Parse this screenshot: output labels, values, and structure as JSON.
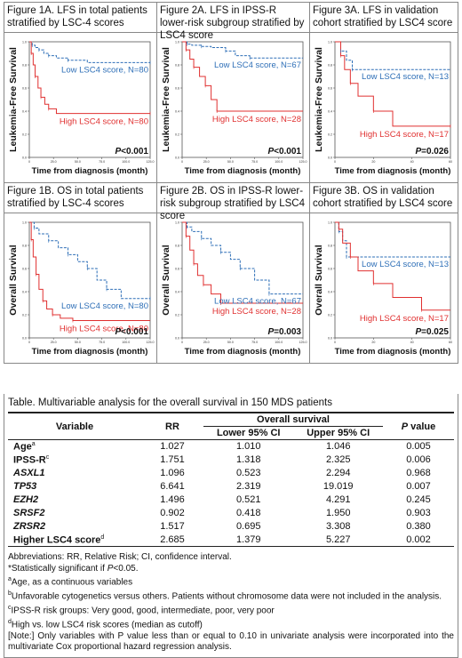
{
  "figures": [
    {
      "id": "1A",
      "caption": "Figure 1A. LFS in total patients stratified by LSC-4 scores",
      "ylabel": "Leukemia-Free Survival",
      "xlabel": "Time from diagnosis (month)",
      "low_label": "Low LSC4 score, N=80",
      "high_label": "High LSC4 score, N=80",
      "p_prefix": "P",
      "p_value": "<0.001",
      "xticks": [
        "0",
        "25.0",
        "50.0",
        "75.0",
        "100.0",
        "125.0"
      ],
      "yticks": [
        "0.0",
        "0.2",
        "0.4",
        "0.6",
        "0.8",
        "1.0"
      ],
      "xmax": 125,
      "low_curve": [
        [
          0,
          1.0
        ],
        [
          3,
          0.97
        ],
        [
          6,
          0.95
        ],
        [
          10,
          0.93
        ],
        [
          15,
          0.9
        ],
        [
          20,
          0.88
        ],
        [
          28,
          0.86
        ],
        [
          40,
          0.84
        ],
        [
          60,
          0.82
        ],
        [
          125,
          0.82
        ]
      ],
      "high_curve": [
        [
          0,
          1.0
        ],
        [
          2,
          0.9
        ],
        [
          4,
          0.8
        ],
        [
          6,
          0.7
        ],
        [
          9,
          0.6
        ],
        [
          12,
          0.52
        ],
        [
          16,
          0.46
        ],
        [
          20,
          0.42
        ],
        [
          28,
          0.38
        ],
        [
          125,
          0.38
        ]
      ]
    },
    {
      "id": "2A",
      "caption": "Figure 2A. LFS in IPSS-R lower-risk subgroup stratified by LSC4 score",
      "ylabel": "Leukemia-Free Survival",
      "xlabel": "Time from diagnosis (month)",
      "low_label": "Low LSC4 score, N=67",
      "high_label": "High LSC4 score, N=28",
      "p_prefix": "P",
      "p_value": "<0.001",
      "xticks": [
        "0",
        "25.0",
        "50.0",
        "75.0",
        "100.0",
        "125.0"
      ],
      "yticks": [
        "0.0",
        "0.2",
        "0.4",
        "0.6",
        "0.8",
        "1.0"
      ],
      "xmax": 125,
      "low_curve": [
        [
          0,
          1.0
        ],
        [
          5,
          0.98
        ],
        [
          10,
          0.97
        ],
        [
          20,
          0.96
        ],
        [
          30,
          0.95
        ],
        [
          45,
          0.92
        ],
        [
          55,
          0.88
        ],
        [
          70,
          0.86
        ],
        [
          125,
          0.86
        ]
      ],
      "high_curve": [
        [
          0,
          1.0
        ],
        [
          4,
          0.93
        ],
        [
          8,
          0.85
        ],
        [
          12,
          0.78
        ],
        [
          18,
          0.7
        ],
        [
          24,
          0.62
        ],
        [
          30,
          0.5
        ],
        [
          36,
          0.4
        ],
        [
          125,
          0.4
        ]
      ]
    },
    {
      "id": "3A",
      "caption": "Figure 3A. LFS in validation cohort stratified by LSC4 score",
      "ylabel": "Leukemia-Free Survival",
      "xlabel": "Time from diagnosis (month)",
      "low_label": "Low LSC4 score, N=13",
      "high_label": "High LSC4 score, N=17",
      "p_prefix": "P",
      "p_value": "=0.026",
      "xticks": [
        "0",
        "20",
        "40",
        "60"
      ],
      "yticks": [
        "0.0",
        "0.2",
        "0.4",
        "0.6",
        "0.8",
        "1.0"
      ],
      "xmax": 60,
      "low_curve": [
        [
          0,
          1.0
        ],
        [
          3,
          0.92
        ],
        [
          6,
          0.84
        ],
        [
          9,
          0.76
        ],
        [
          60,
          0.76
        ]
      ],
      "high_curve": [
        [
          0,
          1.0
        ],
        [
          3,
          0.88
        ],
        [
          5,
          0.76
        ],
        [
          8,
          0.64
        ],
        [
          12,
          0.53
        ],
        [
          20,
          0.4
        ],
        [
          30,
          0.27
        ],
        [
          60,
          0.27
        ]
      ]
    },
    {
      "id": "1B",
      "caption": "Figure 1B. OS in total patients stratified by LSC-4 scores",
      "ylabel": "Overall Survival",
      "xlabel": "Time from diagnosis (month)",
      "low_label": "Low LSC4 score, N=80",
      "high_label": "High LSC4 score, N=80",
      "p_prefix": "P",
      "p_value": "<0.001",
      "xticks": [
        "0",
        "25.0",
        "50.0",
        "75.0",
        "100.0",
        "125.0"
      ],
      "yticks": [
        "0.0",
        "0.2",
        "0.4",
        "0.6",
        "0.8",
        "1.0"
      ],
      "xmax": 125,
      "low_curve": [
        [
          0,
          1.0
        ],
        [
          5,
          0.95
        ],
        [
          10,
          0.9
        ],
        [
          20,
          0.84
        ],
        [
          30,
          0.78
        ],
        [
          40,
          0.72
        ],
        [
          50,
          0.66
        ],
        [
          60,
          0.6
        ],
        [
          70,
          0.5
        ],
        [
          80,
          0.42
        ],
        [
          95,
          0.34
        ],
        [
          125,
          0.34
        ]
      ],
      "high_curve": [
        [
          0,
          1.0
        ],
        [
          2,
          0.85
        ],
        [
          4,
          0.7
        ],
        [
          7,
          0.55
        ],
        [
          10,
          0.42
        ],
        [
          14,
          0.32
        ],
        [
          18,
          0.25
        ],
        [
          24,
          0.2
        ],
        [
          32,
          0.17
        ],
        [
          45,
          0.15
        ],
        [
          125,
          0.15
        ]
      ]
    },
    {
      "id": "2B",
      "caption": "Figure 2B. OS in IPSS-R lower-risk subgroup stratified by LSC4 score",
      "ylabel": "Overall Survival",
      "xlabel": "Time from diagnosis (month)",
      "low_label": "Low LSC4 score, N=67",
      "high_label": "High LSC4 score, N=28",
      "p_prefix": "P",
      "p_value": "=0.003",
      "xticks": [
        "0",
        "25.0",
        "50.0",
        "75.0",
        "100.0",
        "125.0"
      ],
      "yticks": [
        "0.0",
        "0.2",
        "0.4",
        "0.6",
        "0.8",
        "1.0"
      ],
      "xmax": 125,
      "low_curve": [
        [
          0,
          1.0
        ],
        [
          5,
          0.96
        ],
        [
          10,
          0.92
        ],
        [
          20,
          0.86
        ],
        [
          30,
          0.8
        ],
        [
          40,
          0.74
        ],
        [
          50,
          0.68
        ],
        [
          60,
          0.6
        ],
        [
          75,
          0.5
        ],
        [
          90,
          0.38
        ],
        [
          125,
          0.38
        ]
      ],
      "high_curve": [
        [
          0,
          1.0
        ],
        [
          4,
          0.88
        ],
        [
          8,
          0.76
        ],
        [
          12,
          0.64
        ],
        [
          16,
          0.54
        ],
        [
          22,
          0.46
        ],
        [
          30,
          0.38
        ],
        [
          40,
          0.3
        ],
        [
          125,
          0.3
        ]
      ]
    },
    {
      "id": "3B",
      "caption": "Figure 3B. OS in validation cohort stratified by LSC4 score",
      "ylabel": "Overall Survival",
      "xlabel": "Time from diagnosis (month)",
      "low_label": "Low LSC4 score, N=13",
      "high_label": "High LSC4 score, N=17",
      "p_prefix": "P",
      "p_value": "=0.025",
      "xticks": [
        "0",
        "20",
        "40",
        "60"
      ],
      "yticks": [
        "0.0",
        "0.2",
        "0.4",
        "0.6",
        "0.8",
        "1.0"
      ],
      "xmax": 60,
      "low_curve": [
        [
          0,
          1.0
        ],
        [
          2,
          0.92
        ],
        [
          4,
          0.84
        ],
        [
          6,
          0.7
        ],
        [
          60,
          0.7
        ]
      ],
      "high_curve": [
        [
          0,
          1.0
        ],
        [
          2,
          0.94
        ],
        [
          4,
          0.82
        ],
        [
          8,
          0.7
        ],
        [
          12,
          0.58
        ],
        [
          20,
          0.47
        ],
        [
          30,
          0.35
        ],
        [
          45,
          0.24
        ],
        [
          60,
          0.24
        ]
      ]
    }
  ],
  "colors": {
    "low": "#2e6fb7",
    "high": "#e03030"
  },
  "table": {
    "title": "Table. Multivariable analysis for the overall survival in 150 MDS patients",
    "headers": {
      "variable": "Variable",
      "rr": "RR",
      "overall": "Overall survival",
      "lower": "Lower 95% CI",
      "upper": "Upper 95% CI",
      "p_prefix": "P",
      "p_suffix": " value"
    },
    "rows": [
      {
        "variable": "Age",
        "sup": "a",
        "italic": false,
        "rr": "1.027",
        "lower": "1.010",
        "upper": "1.046",
        "p": "0.005"
      },
      {
        "variable": "IPSS-R",
        "sup": "c",
        "italic": false,
        "rr": "1.751",
        "lower": "1.318",
        "upper": "2.325",
        "p": "0.006"
      },
      {
        "variable": "ASXL1",
        "sup": "",
        "italic": true,
        "rr": "1.096",
        "lower": "0.523",
        "upper": "2.294",
        "p": "0.968"
      },
      {
        "variable": "TP53",
        "sup": "",
        "italic": true,
        "rr": "6.641",
        "lower": "2.319",
        "upper": "19.019",
        "p": "0.007"
      },
      {
        "variable": "EZH2",
        "sup": "",
        "italic": true,
        "rr": "1.496",
        "lower": "0.521",
        "upper": "4.291",
        "p": "0.245"
      },
      {
        "variable": "SRSF2",
        "sup": "",
        "italic": true,
        "rr": "0.902",
        "lower": "0.418",
        "upper": "1.950",
        "p": "0.903"
      },
      {
        "variable": "ZRSR2",
        "sup": "",
        "italic": true,
        "rr": "1.517",
        "lower": "0.695",
        "upper": "3.308",
        "p": "0.380"
      },
      {
        "variable": "Higher LSC4 score",
        "sup": "d",
        "italic": false,
        "rr": "2.685",
        "lower": "1.379",
        "upper": "5.227",
        "p": "0.002"
      }
    ]
  },
  "notes": {
    "abbrev": "Abbreviations: RR, Relative Risk; CI, confidence interval.",
    "signif_prefix": "*Statistically significant if ",
    "signif_p": "P",
    "signif_suffix": "<0.05.",
    "a_sup": "a",
    "a_text": "Age, as a continuous variables",
    "b_sup": "b",
    "b_text": "Unfavorable cytogenetics versus others. Patients without chromosome data were not included in the analysis.",
    "c_sup": "c",
    "c_text": "IPSS-R risk groups: Very good, good, intermediate, poor, very poor",
    "d_sup": "d",
    "d_text": "High vs. low LSC4 risk scores (median as cutoff)",
    "note_text": "[Note:] Only variables with P value less than or equal to 0.10 in univariate analysis were incorporated into the multivariate Cox proportional hazard regression analysis."
  }
}
